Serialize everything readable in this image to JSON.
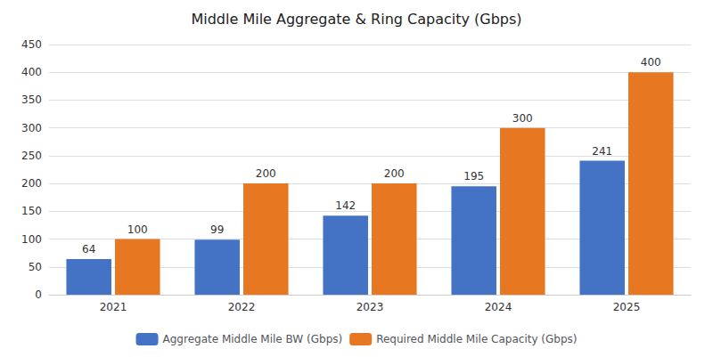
{
  "chart_data": {
    "type": "bar",
    "title": "Middle Mile Aggregate & Ring Capacity (Gbps)",
    "categories": [
      "2021",
      "2022",
      "2023",
      "2024",
      "2025"
    ],
    "series": [
      {
        "name": "Aggregate Middle Mile BW (Gbps)",
        "color": "#4472C4",
        "values": [
          64,
          99,
          142,
          195,
          241
        ]
      },
      {
        "name": "Required Middle Mile Capacity (Gbps)",
        "color": "#E87722",
        "values": [
          100,
          200,
          200,
          300,
          400
        ]
      }
    ],
    "ylim": [
      0,
      450
    ],
    "yticks": [
      0,
      50,
      100,
      150,
      200,
      250,
      300,
      350,
      400,
      450
    ],
    "grid": true,
    "legend": "bottom",
    "data_labels": true
  }
}
